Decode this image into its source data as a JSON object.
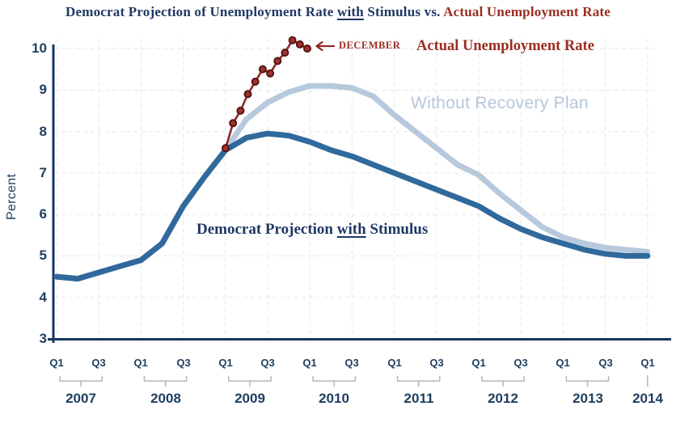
{
  "title": {
    "navy1": "Democrat Projection of Unemployment Rate ",
    "underlined_word": "with",
    "navy2": " Stimulus vs. ",
    "red": "Actual Unemployment Rate"
  },
  "labels": {
    "ylabel": "Percent",
    "actual_series": "Actual Unemployment Rate",
    "december_annotation": "DECEMBER",
    "without_series": "Without Recovery Plan",
    "stimulus_prefix": "Democrat Projection ",
    "stimulus_underlined": "with",
    "stimulus_suffix": " Stimulus"
  },
  "colors": {
    "navy_text": "#1f3864",
    "red_text": "#9b2d22",
    "tick_text": "#1d3e5f",
    "axis": "#17375e",
    "grid": "#e4e7ea",
    "bracket": "#b0b9be",
    "stimulus_line": "#30699c",
    "without_line": "#b7c9dc",
    "without_label_color": "#b5c6d9",
    "actual_line": "#8c2b26",
    "actual_marker_fill": "#9c3430",
    "actual_marker_stroke": "#58120f"
  },
  "chart_data": {
    "type": "line",
    "title": "Democrat Projection of Unemployment Rate with Stimulus vs. Actual Unemployment Rate",
    "xlabel": "",
    "ylabel": "Percent",
    "ylim": [
      3,
      10
    ],
    "y_ticks": [
      3,
      4,
      5,
      6,
      7,
      8,
      9,
      10
    ],
    "grid": "dashed, at every percent and every labeled quarter",
    "legend_position": "inline annotations on chart",
    "x_years": [
      2007,
      2008,
      2009,
      2010,
      2011,
      2012,
      2013,
      2014
    ],
    "x_tick_labels_per_year": [
      "Q1",
      "Q3"
    ],
    "categories_quarterly": [
      "2007 Q1",
      "2007 Q2",
      "2007 Q3",
      "2007 Q4",
      "2008 Q1",
      "2008 Q2",
      "2008 Q3",
      "2008 Q4",
      "2009 Q1",
      "2009 Q2",
      "2009 Q3",
      "2009 Q4",
      "2010 Q1",
      "2010 Q2",
      "2010 Q3",
      "2010 Q4",
      "2011 Q1",
      "2011 Q2",
      "2011 Q3",
      "2011 Q4",
      "2012 Q1",
      "2012 Q2",
      "2012 Q3",
      "2012 Q4",
      "2013 Q1",
      "2013 Q2",
      "2013 Q3",
      "2013 Q4",
      "2014 Q1"
    ],
    "series": [
      {
        "name": "Without Recovery Plan",
        "interval": "quarterly",
        "values": [
          4.5,
          4.45,
          4.6,
          4.75,
          4.9,
          5.3,
          6.2,
          6.9,
          7.55,
          8.3,
          8.7,
          8.95,
          9.1,
          9.1,
          9.05,
          8.85,
          8.4,
          8.0,
          7.6,
          7.2,
          6.95,
          6.5,
          6.1,
          5.7,
          5.45,
          5.3,
          5.2,
          5.15,
          5.1
        ]
      },
      {
        "name": "Democrat Projection with Stimulus",
        "interval": "quarterly",
        "values": [
          4.5,
          4.45,
          4.6,
          4.75,
          4.9,
          5.3,
          6.2,
          6.9,
          7.55,
          7.85,
          7.95,
          7.9,
          7.75,
          7.55,
          7.4,
          7.2,
          7.0,
          6.8,
          6.6,
          6.4,
          6.2,
          5.9,
          5.65,
          5.45,
          5.3,
          5.15,
          5.05,
          5.0,
          5.0
        ]
      },
      {
        "name": "Actual Unemployment Rate",
        "interval": "monthly",
        "markers": true,
        "x_months": [
          "Jan 2009",
          "Feb 2009",
          "Mar 2009",
          "Apr 2009",
          "May 2009",
          "Jun 2009",
          "Jul 2009",
          "Aug 2009",
          "Sep 2009",
          "Oct 2009",
          "Nov 2009",
          "Dec 2009"
        ],
        "values": [
          7.6,
          8.2,
          8.5,
          8.9,
          9.2,
          9.5,
          9.4,
          9.7,
          9.9,
          10.2,
          10.1,
          10.0
        ],
        "annotation": "DECEMBER arrow points to final point"
      }
    ]
  }
}
